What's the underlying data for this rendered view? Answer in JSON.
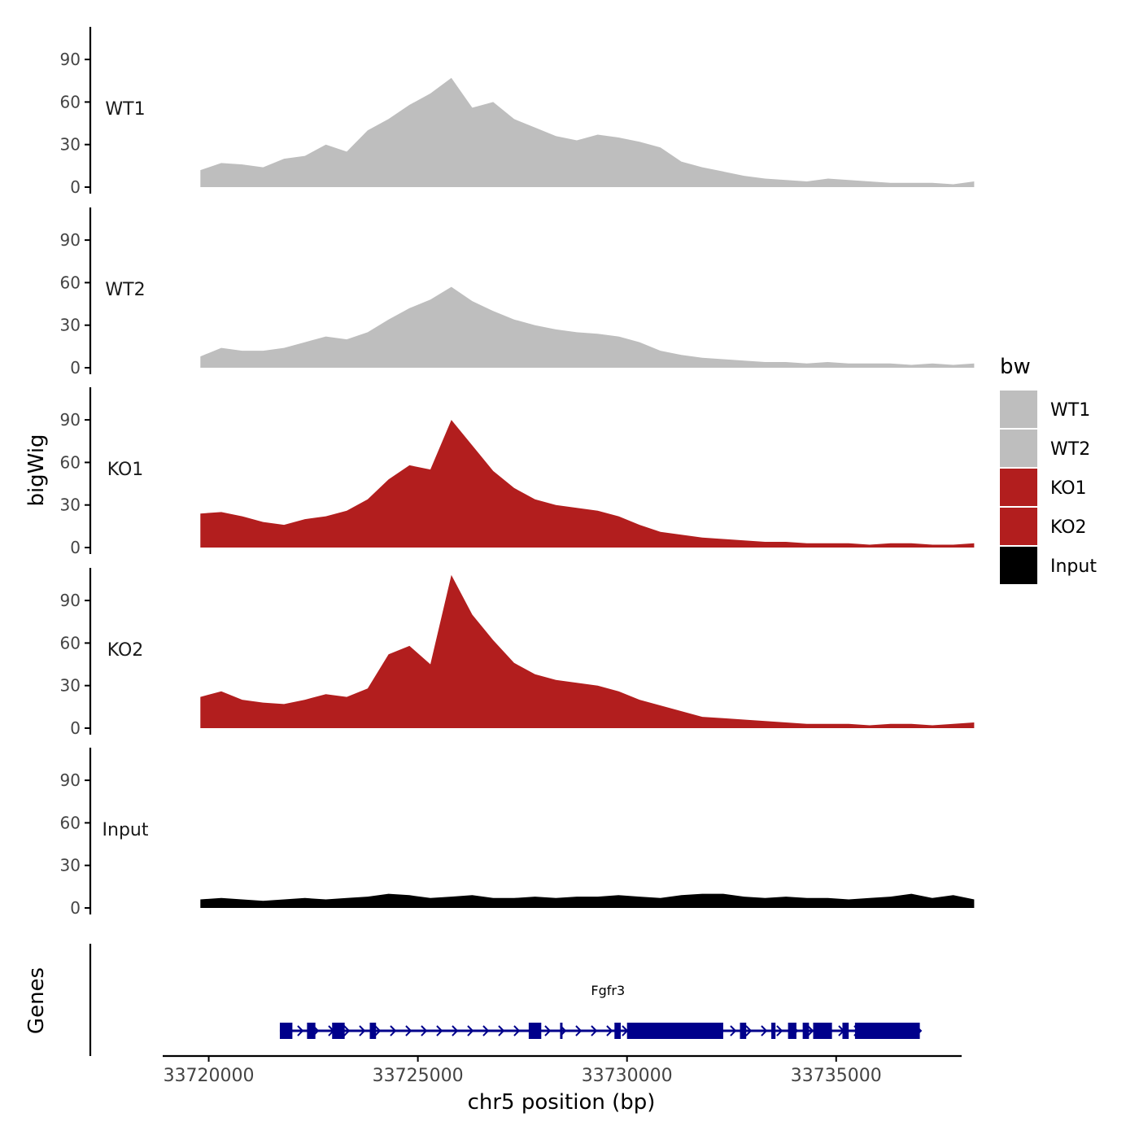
{
  "chart_data": {
    "type": "area",
    "xlabel": "chr5 position (bp)",
    "ylabel": "bigWig",
    "genes_label": "Genes",
    "xlim": [
      33718900,
      33738000
    ],
    "x_ticks": [
      33720000,
      33725000,
      33730000,
      33735000
    ],
    "x_tick_labels": [
      "33720000",
      "33725000",
      "33730000",
      "33735000"
    ],
    "ylim": [
      0,
      113
    ],
    "y_ticks": [
      0,
      30,
      60,
      90
    ],
    "y_tick_labels": [
      "0",
      "30",
      "60",
      "90"
    ],
    "legend": {
      "title": "bw",
      "position": "right",
      "entries": [
        {
          "label": "WT1",
          "color": "#bebebe"
        },
        {
          "label": "WT2",
          "color": "#bebebe"
        },
        {
          "label": "KO1",
          "color": "#b21e1e"
        },
        {
          "label": "KO2",
          "color": "#b21e1e"
        },
        {
          "label": "Input",
          "color": "#000000"
        }
      ]
    },
    "x_start": 33719800,
    "x_step": 500,
    "series": [
      {
        "name": "WT1",
        "color": "#bebebe",
        "values": [
          12,
          17,
          16,
          14,
          20,
          22,
          30,
          25,
          40,
          48,
          58,
          66,
          77,
          56,
          60,
          48,
          42,
          36,
          33,
          37,
          35,
          32,
          28,
          18,
          14,
          11,
          8,
          6,
          5,
          4,
          6,
          5,
          4,
          3,
          3,
          3,
          2,
          4
        ]
      },
      {
        "name": "WT2",
        "color": "#bebebe",
        "values": [
          8,
          14,
          12,
          12,
          14,
          18,
          22,
          20,
          25,
          34,
          42,
          48,
          57,
          47,
          40,
          34,
          30,
          27,
          25,
          24,
          22,
          18,
          12,
          9,
          7,
          6,
          5,
          4,
          4,
          3,
          4,
          3,
          3,
          3,
          2,
          3,
          2,
          3
        ]
      },
      {
        "name": "KO1",
        "color": "#b21e1e",
        "values": [
          24,
          25,
          22,
          18,
          16,
          20,
          22,
          26,
          34,
          48,
          58,
          55,
          90,
          72,
          54,
          42,
          34,
          30,
          28,
          26,
          22,
          16,
          11,
          9,
          7,
          6,
          5,
          4,
          4,
          3,
          3,
          3,
          2,
          3,
          3,
          2,
          2,
          3
        ]
      },
      {
        "name": "KO2",
        "color": "#b21e1e",
        "values": [
          22,
          26,
          20,
          18,
          17,
          20,
          24,
          22,
          28,
          52,
          58,
          45,
          108,
          80,
          62,
          46,
          38,
          34,
          32,
          30,
          26,
          20,
          16,
          12,
          8,
          7,
          6,
          5,
          4,
          3,
          3,
          3,
          2,
          3,
          3,
          2,
          3,
          4
        ]
      },
      {
        "name": "Input",
        "color": "#000000",
        "values": [
          6,
          7,
          6,
          5,
          6,
          7,
          6,
          7,
          8,
          10,
          9,
          7,
          8,
          9,
          7,
          7,
          8,
          7,
          8,
          8,
          9,
          8,
          7,
          9,
          10,
          10,
          8,
          7,
          8,
          7,
          7,
          6,
          7,
          8,
          10,
          7,
          9,
          6
        ]
      }
    ],
    "genes": [
      {
        "name": "Fgfr3",
        "start": 33721700,
        "end": 33737000,
        "strand": "+",
        "exons": [
          [
            33721700,
            33722000
          ],
          [
            33722350,
            33722550
          ],
          [
            33722950,
            33723250
          ],
          [
            33723850,
            33724000
          ],
          [
            33727650,
            33727950
          ],
          [
            33728400,
            33728450
          ],
          [
            33729700,
            33729850
          ],
          [
            33730000,
            33732300
          ],
          [
            33732700,
            33732850
          ],
          [
            33733450,
            33733550
          ],
          [
            33733850,
            33734050
          ],
          [
            33734200,
            33734350
          ],
          [
            33734450,
            33734900
          ],
          [
            33735150,
            33735300
          ],
          [
            33735450,
            33737000
          ]
        ]
      }
    ]
  }
}
